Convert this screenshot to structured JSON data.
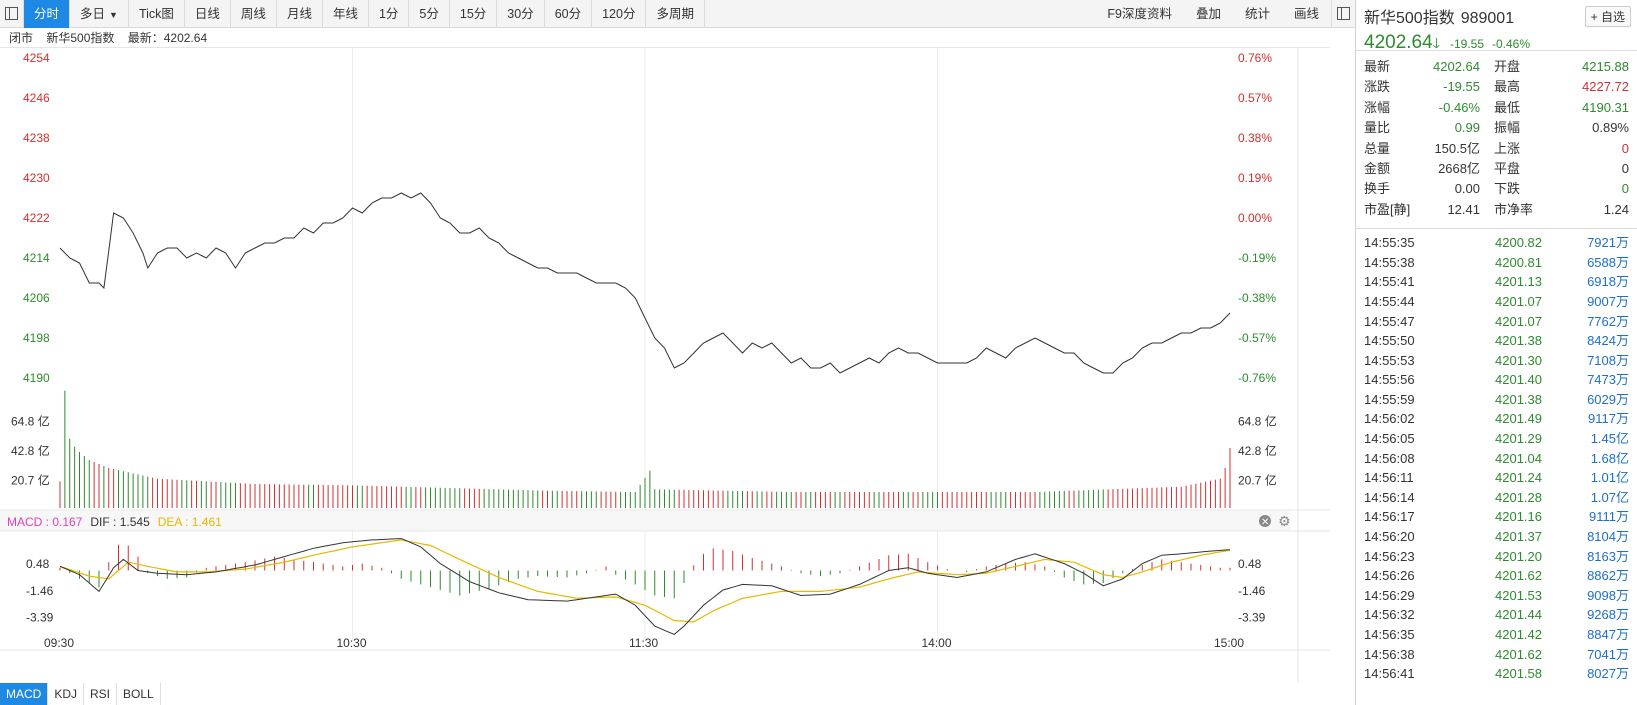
{
  "toolbar": {
    "tabs": [
      {
        "label": "分时",
        "active": true
      },
      {
        "label": "多日",
        "dropdown": true
      },
      {
        "label": "Tick图"
      },
      {
        "label": "日线"
      },
      {
        "label": "周线"
      },
      {
        "label": "月线"
      },
      {
        "label": "年线"
      },
      {
        "label": "1分"
      },
      {
        "label": "5分"
      },
      {
        "label": "15分"
      },
      {
        "label": "30分"
      },
      {
        "label": "60分"
      },
      {
        "label": "120分"
      },
      {
        "label": "多周期"
      }
    ],
    "right_buttons": [
      "F9深度资料",
      "叠加",
      "统计",
      "画线"
    ]
  },
  "infobar": {
    "status": "闭市",
    "name": "新华500指数",
    "latest_label": "最新：4202.64"
  },
  "macd_legend": {
    "macd": "MACD : 0.167",
    "dif": "DIF : 1.545",
    "dea": "DEA : 1.461"
  },
  "indicator_tabs": [
    "MACD",
    "KDJ",
    "RSI",
    "BOLL"
  ],
  "panel": {
    "name": "新华500指数",
    "code": "989001",
    "fav_label": "+ 自选",
    "price": "4202.64",
    "arrow": "🡓",
    "change": "-19.55",
    "pct": "-0.46%",
    "quote_rows": [
      {
        "l1": "最新",
        "v1": "4202.64",
        "c1": "green",
        "l2": "开盘",
        "v2": "4215.88",
        "c2": "green"
      },
      {
        "l1": "涨跌",
        "v1": "-19.55",
        "c1": "green",
        "l2": "最高",
        "v2": "4227.72",
        "c2": "red"
      },
      {
        "l1": "涨幅",
        "v1": "-0.46%",
        "c1": "green",
        "l2": "最低",
        "v2": "4190.31",
        "c2": "green"
      },
      {
        "l1": "量比",
        "v1": "0.99",
        "c1": "green",
        "l2": "振幅",
        "v2": "0.89%",
        "c2": "black"
      },
      {
        "l1": "总量",
        "v1": "150.5亿",
        "c1": "black",
        "l2": "上涨",
        "v2": "0",
        "c2": "red"
      },
      {
        "l1": "金额",
        "v1": "2668亿",
        "c1": "black",
        "l2": "平盘",
        "v2": "0",
        "c2": "black"
      },
      {
        "l1": "换手",
        "v1": "0.00",
        "c1": "black",
        "l2": "下跌",
        "v2": "0",
        "c2": "green"
      },
      {
        "l1": "市盈[静]",
        "v1": "12.41",
        "c1": "black",
        "l2": "市净率",
        "v2": "1.24",
        "c2": "black"
      }
    ],
    "ticks": [
      {
        "time": "14:55:35",
        "price": "4200.82",
        "vol": "7921万"
      },
      {
        "time": "14:55:38",
        "price": "4200.81",
        "vol": "6588万"
      },
      {
        "time": "14:55:41",
        "price": "4201.13",
        "vol": "6918万"
      },
      {
        "time": "14:55:44",
        "price": "4201.07",
        "vol": "9007万"
      },
      {
        "time": "14:55:47",
        "price": "4201.07",
        "vol": "7762万"
      },
      {
        "time": "14:55:50",
        "price": "4201.38",
        "vol": "8424万"
      },
      {
        "time": "14:55:53",
        "price": "4201.30",
        "vol": "7108万"
      },
      {
        "time": "14:55:56",
        "price": "4201.40",
        "vol": "7473万"
      },
      {
        "time": "14:55:59",
        "price": "4201.38",
        "vol": "6029万"
      },
      {
        "time": "14:56:02",
        "price": "4201.49",
        "vol": "9117万"
      },
      {
        "time": "14:56:05",
        "price": "4201.29",
        "vol": "1.45亿"
      },
      {
        "time": "14:56:08",
        "price": "4201.04",
        "vol": "1.68亿"
      },
      {
        "time": "14:56:11",
        "price": "4201.24",
        "vol": "1.01亿"
      },
      {
        "time": "14:56:14",
        "price": "4201.28",
        "vol": "1.07亿"
      },
      {
        "time": "14:56:17",
        "price": "4201.16",
        "vol": "9111万"
      },
      {
        "time": "14:56:20",
        "price": "4201.37",
        "vol": "8104万"
      },
      {
        "time": "14:56:23",
        "price": "4201.20",
        "vol": "8163万"
      },
      {
        "time": "14:56:26",
        "price": "4201.62",
        "vol": "8862万"
      },
      {
        "time": "14:56:29",
        "price": "4201.53",
        "vol": "9098万"
      },
      {
        "time": "14:56:32",
        "price": "4201.44",
        "vol": "9268万"
      },
      {
        "time": "14:56:35",
        "price": "4201.42",
        "vol": "8847万"
      },
      {
        "time": "14:56:38",
        "price": "4201.62",
        "vol": "7041万"
      },
      {
        "time": "14:56:41",
        "price": "4201.58",
        "vol": "8027万"
      }
    ]
  },
  "colors": {
    "up": "#d23030",
    "down": "#2e8b2e",
    "line": "#333333",
    "dea": "#e6b800",
    "macd_label": "#e040c0",
    "accent": "#1e88e5"
  },
  "chart_data": {
    "type": "line",
    "title": "",
    "prev_close": 4222.19,
    "price_axis": {
      "ticks": [
        "4254",
        "4246",
        "4238",
        "4230",
        "4222",
        "4214",
        "4206",
        "4198",
        "4190"
      ],
      "ylim": [
        4190,
        4254
      ]
    },
    "pct_axis": {
      "ticks": [
        "0.76%",
        "0.57%",
        "0.38%",
        "0.19%",
        "0.00%",
        "-0.19%",
        "-0.38%",
        "-0.57%",
        "-0.76%"
      ]
    },
    "volume_axis": {
      "ticks": [
        "64.8 亿",
        "42.8 亿",
        "20.7 亿"
      ]
    },
    "macd_axis": {
      "ticks": [
        "0.48",
        "-1.46",
        "-3.39"
      ]
    },
    "x_tick_labels": [
      "09:30",
      "10:30",
      "11:30",
      "14:00",
      "15:00"
    ],
    "price_anchors": [
      [
        0,
        4216
      ],
      [
        2,
        4214
      ],
      [
        4,
        4213
      ],
      [
        6,
        4209
      ],
      [
        8,
        4209
      ],
      [
        9,
        4208
      ],
      [
        11,
        4223
      ],
      [
        13,
        4222
      ],
      [
        15,
        4219
      ],
      [
        17,
        4215
      ],
      [
        18,
        4212
      ],
      [
        20,
        4215
      ],
      [
        22,
        4216
      ],
      [
        24,
        4216
      ],
      [
        26,
        4214
      ],
      [
        28,
        4215
      ],
      [
        30,
        4214
      ],
      [
        32,
        4216
      ],
      [
        34,
        4215
      ],
      [
        36,
        4212
      ],
      [
        38,
        4215
      ],
      [
        40,
        4216
      ],
      [
        42,
        4217
      ],
      [
        44,
        4217
      ],
      [
        46,
        4218
      ],
      [
        48,
        4218
      ],
      [
        50,
        4220
      ],
      [
        52,
        4219
      ],
      [
        54,
        4221
      ],
      [
        56,
        4221
      ],
      [
        58,
        4222
      ],
      [
        60,
        4224
      ],
      [
        62,
        4223
      ],
      [
        64,
        4225
      ],
      [
        66,
        4226
      ],
      [
        68,
        4226
      ],
      [
        70,
        4227
      ],
      [
        72,
        4226
      ],
      [
        74,
        4227
      ],
      [
        76,
        4225
      ],
      [
        78,
        4222
      ],
      [
        80,
        4221
      ],
      [
        82,
        4219
      ],
      [
        84,
        4219
      ],
      [
        86,
        4220
      ],
      [
        88,
        4218
      ],
      [
        90,
        4217
      ],
      [
        92,
        4215
      ],
      [
        94,
        4214
      ],
      [
        96,
        4213
      ],
      [
        98,
        4212
      ],
      [
        100,
        4212
      ],
      [
        102,
        4211
      ],
      [
        104,
        4211
      ],
      [
        106,
        4211
      ],
      [
        108,
        4210
      ],
      [
        110,
        4209
      ],
      [
        112,
        4209
      ],
      [
        114,
        4209
      ],
      [
        116,
        4208
      ],
      [
        118,
        4206
      ],
      [
        120,
        4202
      ],
      [
        122,
        4198
      ],
      [
        124,
        4196
      ],
      [
        126,
        4192
      ],
      [
        128,
        4193
      ],
      [
        130,
        4195
      ],
      [
        132,
        4197
      ],
      [
        134,
        4198
      ],
      [
        136,
        4199
      ],
      [
        138,
        4197
      ],
      [
        140,
        4195
      ],
      [
        142,
        4197
      ],
      [
        144,
        4196
      ],
      [
        146,
        4197
      ],
      [
        148,
        4195
      ],
      [
        150,
        4193
      ],
      [
        152,
        4194
      ],
      [
        154,
        4192
      ],
      [
        156,
        4192
      ],
      [
        158,
        4193
      ],
      [
        160,
        4191
      ],
      [
        162,
        4192
      ],
      [
        164,
        4193
      ],
      [
        166,
        4194
      ],
      [
        168,
        4193
      ],
      [
        170,
        4195
      ],
      [
        172,
        4196
      ],
      [
        174,
        4195
      ],
      [
        176,
        4195
      ],
      [
        178,
        4194
      ],
      [
        180,
        4193
      ],
      [
        182,
        4193
      ],
      [
        184,
        4193
      ],
      [
        186,
        4193
      ],
      [
        188,
        4194
      ],
      [
        190,
        4196
      ],
      [
        192,
        4195
      ],
      [
        194,
        4194
      ],
      [
        196,
        4196
      ],
      [
        198,
        4197
      ],
      [
        200,
        4198
      ],
      [
        202,
        4197
      ],
      [
        204,
        4196
      ],
      [
        206,
        4195
      ],
      [
        208,
        4195
      ],
      [
        210,
        4193
      ],
      [
        212,
        4192
      ],
      [
        214,
        4191
      ],
      [
        216,
        4191
      ],
      [
        218,
        4193
      ],
      [
        220,
        4194
      ],
      [
        222,
        4196
      ],
      [
        224,
        4197
      ],
      [
        226,
        4197
      ],
      [
        228,
        4198
      ],
      [
        230,
        4199
      ],
      [
        232,
        4199
      ],
      [
        234,
        4200
      ],
      [
        236,
        4200
      ],
      [
        238,
        4201
      ],
      [
        240,
        4203
      ]
    ],
    "volume_anchors": [
      [
        0,
        20
      ],
      [
        1,
        88
      ],
      [
        2,
        52
      ],
      [
        3,
        46
      ],
      [
        4,
        42
      ],
      [
        6,
        36
      ],
      [
        10,
        30
      ],
      [
        20,
        22
      ],
      [
        40,
        18
      ],
      [
        60,
        17
      ],
      [
        80,
        15
      ],
      [
        100,
        13
      ],
      [
        118,
        12
      ],
      [
        121,
        28
      ],
      [
        122,
        14
      ],
      [
        150,
        12
      ],
      [
        200,
        12
      ],
      [
        230,
        16
      ],
      [
        238,
        22
      ],
      [
        239,
        30
      ],
      [
        240,
        45
      ]
    ],
    "macd_hist_anchors": [
      [
        0,
        0.2
      ],
      [
        5,
        -0.8
      ],
      [
        8,
        -1.2
      ],
      [
        11,
        1.5
      ],
      [
        13,
        2.2
      ],
      [
        16,
        1.0
      ],
      [
        18,
        -0.2
      ],
      [
        22,
        -0.6
      ],
      [
        26,
        -0.5
      ],
      [
        30,
        0.2
      ],
      [
        38,
        0.6
      ],
      [
        44,
        1.0
      ],
      [
        52,
        0.6
      ],
      [
        58,
        0.3
      ],
      [
        62,
        0.5
      ],
      [
        66,
        0.2
      ],
      [
        70,
        -0.6
      ],
      [
        76,
        -1.2
      ],
      [
        82,
        -1.8
      ],
      [
        88,
        -1.3
      ],
      [
        94,
        -0.6
      ],
      [
        98,
        -0.4
      ],
      [
        104,
        -0.5
      ],
      [
        108,
        -0.2
      ],
      [
        112,
        0.3
      ],
      [
        114,
        -0.3
      ],
      [
        118,
        -1.0
      ],
      [
        122,
        -1.8
      ],
      [
        126,
        -2.0
      ],
      [
        128,
        -0.9
      ],
      [
        131,
        1.0
      ],
      [
        134,
        1.6
      ],
      [
        138,
        1.4
      ],
      [
        142,
        0.9
      ],
      [
        148,
        0.3
      ],
      [
        152,
        -0.2
      ],
      [
        156,
        -0.4
      ],
      [
        160,
        -0.2
      ],
      [
        164,
        0.3
      ],
      [
        170,
        1.1
      ],
      [
        174,
        1.2
      ],
      [
        178,
        0.6
      ],
      [
        182,
        0.1
      ],
      [
        186,
        -0.1
      ],
      [
        190,
        0.3
      ],
      [
        194,
        0.5
      ],
      [
        198,
        0.6
      ],
      [
        202,
        0.3
      ],
      [
        206,
        -0.5
      ],
      [
        210,
        -1.0
      ],
      [
        214,
        -0.9
      ],
      [
        218,
        -0.2
      ],
      [
        222,
        0.4
      ],
      [
        226,
        0.8
      ],
      [
        230,
        0.6
      ],
      [
        234,
        0.4
      ],
      [
        238,
        0.2
      ],
      [
        240,
        0.2
      ]
    ],
    "dif_anchors": [
      [
        0,
        0.3
      ],
      [
        4,
        -0.3
      ],
      [
        8,
        -1.5
      ],
      [
        11,
        0.2
      ],
      [
        13,
        0.8
      ],
      [
        16,
        0.0
      ],
      [
        20,
        -0.2
      ],
      [
        26,
        -0.3
      ],
      [
        32,
        -0.1
      ],
      [
        40,
        0.4
      ],
      [
        46,
        1.0
      ],
      [
        52,
        1.6
      ],
      [
        58,
        2.0
      ],
      [
        64,
        2.2
      ],
      [
        70,
        2.3
      ],
      [
        74,
        1.7
      ],
      [
        78,
        0.5
      ],
      [
        84,
        -0.8
      ],
      [
        90,
        -1.6
      ],
      [
        96,
        -2.1
      ],
      [
        104,
        -2.2
      ],
      [
        110,
        -1.9
      ],
      [
        114,
        -1.7
      ],
      [
        118,
        -2.5
      ],
      [
        122,
        -4.0
      ],
      [
        126,
        -4.6
      ],
      [
        128,
        -4.0
      ],
      [
        132,
        -2.5
      ],
      [
        136,
        -1.4
      ],
      [
        140,
        -1.0
      ],
      [
        146,
        -1.1
      ],
      [
        152,
        -1.8
      ],
      [
        158,
        -1.7
      ],
      [
        164,
        -1.0
      ],
      [
        170,
        0.0
      ],
      [
        174,
        0.2
      ],
      [
        178,
        -0.2
      ],
      [
        184,
        -0.5
      ],
      [
        190,
        -0.1
      ],
      [
        196,
        0.8
      ],
      [
        200,
        1.2
      ],
      [
        206,
        0.5
      ],
      [
        210,
        -0.2
      ],
      [
        214,
        -1.1
      ],
      [
        218,
        -0.6
      ],
      [
        222,
        0.5
      ],
      [
        226,
        1.1
      ],
      [
        230,
        1.2
      ],
      [
        236,
        1.4
      ],
      [
        240,
        1.5
      ]
    ],
    "dea_anchors": [
      [
        0,
        0.3
      ],
      [
        6,
        -0.4
      ],
      [
        10,
        -0.6
      ],
      [
        14,
        0.6
      ],
      [
        18,
        0.3
      ],
      [
        24,
        -0.1
      ],
      [
        30,
        -0.1
      ],
      [
        38,
        0.1
      ],
      [
        46,
        0.6
      ],
      [
        52,
        1.1
      ],
      [
        60,
        1.7
      ],
      [
        70,
        2.2
      ],
      [
        76,
        1.8
      ],
      [
        82,
        0.8
      ],
      [
        90,
        -0.5
      ],
      [
        98,
        -1.5
      ],
      [
        106,
        -2.0
      ],
      [
        114,
        -1.9
      ],
      [
        120,
        -2.5
      ],
      [
        126,
        -3.6
      ],
      [
        130,
        -3.7
      ],
      [
        134,
        -2.9
      ],
      [
        140,
        -2.0
      ],
      [
        148,
        -1.5
      ],
      [
        156,
        -1.5
      ],
      [
        164,
        -1.2
      ],
      [
        170,
        -0.6
      ],
      [
        176,
        -0.1
      ],
      [
        184,
        -0.3
      ],
      [
        190,
        -0.2
      ],
      [
        196,
        0.3
      ],
      [
        202,
        0.8
      ],
      [
        208,
        0.6
      ],
      [
        214,
        -0.3
      ],
      [
        218,
        -0.5
      ],
      [
        222,
        -0.1
      ],
      [
        228,
        0.6
      ],
      [
        234,
        1.1
      ],
      [
        240,
        1.46
      ]
    ]
  }
}
